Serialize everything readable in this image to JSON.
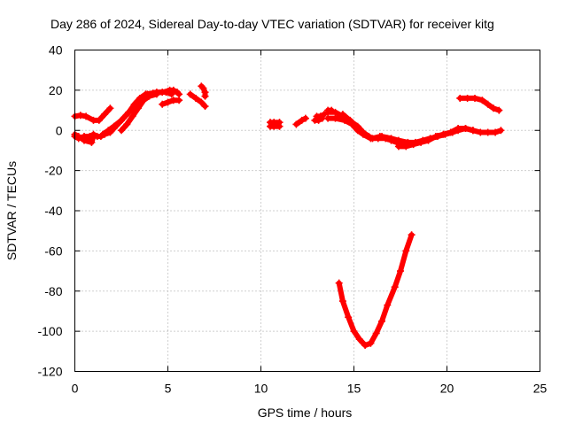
{
  "chart_data": {
    "type": "scatter",
    "title": "Day 286 of 2024, Sidereal Day-to-day VTEC variation (SDTVAR) for receiver kitg",
    "xlabel": "GPS time / hours",
    "ylabel": "SDTVAR / TECUs",
    "xlim": [
      0,
      25
    ],
    "ylim": [
      -120,
      40
    ],
    "xticks": [
      0,
      5,
      10,
      15,
      20,
      25
    ],
    "yticks": [
      -120,
      -100,
      -80,
      -60,
      -40,
      -20,
      0,
      20,
      40
    ],
    "grid": true,
    "marker": "plus",
    "color": "#ff0000",
    "series": [
      {
        "name": "arc1",
        "points": [
          [
            0.0,
            7
          ],
          [
            0.3,
            7.5
          ],
          [
            0.6,
            7
          ],
          [
            1.0,
            5
          ],
          [
            1.3,
            5
          ],
          [
            1.6,
            8
          ],
          [
            1.9,
            11
          ]
        ]
      },
      {
        "name": "arc2",
        "points": [
          [
            0.0,
            -2
          ],
          [
            0.2,
            -3
          ],
          [
            0.5,
            -5
          ],
          [
            0.9,
            -6
          ],
          [
            1.0,
            -3
          ]
        ]
      },
      {
        "name": "arc3",
        "points": [
          [
            0.0,
            -3
          ],
          [
            0.2,
            -4
          ],
          [
            0.5,
            -3
          ],
          [
            0.8,
            -3
          ],
          [
            1.0,
            -2
          ],
          [
            1.2,
            -3
          ],
          [
            1.4,
            -3
          ],
          [
            1.6,
            -2
          ],
          [
            1.9,
            -1
          ],
          [
            2.1,
            1
          ],
          [
            2.4,
            4
          ],
          [
            2.6,
            6
          ],
          [
            2.9,
            9
          ],
          [
            3.2,
            12
          ],
          [
            3.5,
            16
          ],
          [
            3.9,
            18
          ],
          [
            4.4,
            19
          ],
          [
            4.9,
            19
          ],
          [
            5.2,
            18
          ]
        ]
      },
      {
        "name": "arc4",
        "points": [
          [
            1.5,
            -2
          ],
          [
            1.8,
            0
          ],
          [
            2.1,
            2
          ],
          [
            2.5,
            5
          ],
          [
            2.9,
            9
          ],
          [
            3.2,
            13
          ],
          [
            3.5,
            16
          ],
          [
            3.8,
            18
          ],
          [
            4.2,
            18.5
          ],
          [
            4.7,
            19
          ],
          [
            5.0,
            19.5
          ]
        ]
      },
      {
        "name": "arc5",
        "points": [
          [
            2.5,
            0
          ],
          [
            2.8,
            3
          ],
          [
            3.1,
            7
          ],
          [
            3.4,
            11
          ],
          [
            3.7,
            15
          ],
          [
            4.0,
            17
          ],
          [
            4.4,
            18
          ]
        ]
      },
      {
        "name": "arc6",
        "points": [
          [
            4.7,
            13
          ],
          [
            5.0,
            14
          ],
          [
            5.3,
            15
          ],
          [
            5.6,
            15
          ]
        ]
      },
      {
        "name": "arc7",
        "points": [
          [
            5.1,
            20
          ],
          [
            5.3,
            20
          ],
          [
            5.5,
            19
          ],
          [
            5.6,
            18
          ]
        ]
      },
      {
        "name": "arc8",
        "points": [
          [
            6.2,
            18
          ],
          [
            6.5,
            16
          ],
          [
            6.8,
            14
          ],
          [
            7.0,
            12
          ]
        ]
      },
      {
        "name": "arc9",
        "points": [
          [
            6.8,
            22
          ],
          [
            6.9,
            21
          ],
          [
            7.0,
            19
          ],
          [
            7.0,
            17
          ]
        ]
      },
      {
        "name": "arc10",
        "points": [
          [
            10.5,
            4
          ],
          [
            10.7,
            4
          ],
          [
            11.0,
            4
          ]
        ]
      },
      {
        "name": "arc11",
        "points": [
          [
            10.5,
            2
          ],
          [
            10.7,
            2
          ],
          [
            11.0,
            2
          ]
        ]
      },
      {
        "name": "arc12",
        "points": [
          [
            11.9,
            3
          ],
          [
            12.2,
            5
          ],
          [
            12.4,
            6
          ]
        ]
      },
      {
        "name": "arc13",
        "points": [
          [
            12.9,
            5
          ],
          [
            13.1,
            5
          ],
          [
            13.3,
            6
          ]
        ]
      },
      {
        "name": "arc14",
        "points": [
          [
            13.0,
            7
          ],
          [
            13.2,
            7
          ],
          [
            13.4,
            8
          ]
        ]
      },
      {
        "name": "arc15",
        "points": [
          [
            13.6,
            10
          ],
          [
            13.8,
            10
          ]
        ]
      },
      {
        "name": "arc16",
        "points": [
          [
            13.6,
            6
          ],
          [
            14.0,
            6
          ],
          [
            14.5,
            5
          ],
          [
            14.9,
            3
          ],
          [
            15.2,
            0
          ],
          [
            15.5,
            -2
          ],
          [
            15.9,
            -4
          ],
          [
            16.3,
            -4
          ],
          [
            16.7,
            -4
          ],
          [
            17.0,
            -5
          ],
          [
            17.3,
            -6
          ],
          [
            17.6,
            -7
          ],
          [
            17.9,
            -7
          ]
        ]
      },
      {
        "name": "arc17",
        "points": [
          [
            13.6,
            9
          ],
          [
            14.0,
            9
          ],
          [
            14.4,
            7
          ],
          [
            14.8,
            5
          ],
          [
            15.1,
            2
          ],
          [
            15.3,
            0
          ],
          [
            15.6,
            -2
          ],
          [
            16.0,
            -4
          ],
          [
            16.4,
            -3
          ],
          [
            16.8,
            -4
          ]
        ]
      },
      {
        "name": "arc18",
        "points": [
          [
            14.4,
            8
          ],
          [
            14.9,
            4
          ],
          [
            15.2,
            2
          ],
          [
            15.5,
            -1
          ],
          [
            15.8,
            -3
          ]
        ]
      },
      {
        "name": "arc19",
        "points": [
          [
            16.5,
            -3
          ],
          [
            17.0,
            -4
          ],
          [
            17.4,
            -5
          ],
          [
            17.9,
            -6
          ],
          [
            18.3,
            -6
          ],
          [
            18.7,
            -5
          ],
          [
            19.1,
            -4
          ],
          [
            19.5,
            -3
          ],
          [
            19.9,
            -2
          ],
          [
            20.3,
            -1
          ],
          [
            20.6,
            0
          ],
          [
            21.0,
            1
          ],
          [
            21.4,
            0
          ],
          [
            21.8,
            -1
          ],
          [
            22.2,
            -1
          ],
          [
            22.6,
            -1
          ],
          [
            22.9,
            0
          ]
        ]
      },
      {
        "name": "arc20",
        "points": [
          [
            17.4,
            -8
          ],
          [
            17.8,
            -8
          ],
          [
            18.2,
            -7
          ],
          [
            18.6,
            -6
          ],
          [
            19.0,
            -5
          ],
          [
            19.4,
            -3
          ],
          [
            19.8,
            -2
          ],
          [
            20.2,
            -1
          ],
          [
            20.6,
            1
          ],
          [
            21.0,
            1
          ],
          [
            21.4,
            0
          ]
        ]
      },
      {
        "name": "arc21",
        "points": [
          [
            20.7,
            16
          ],
          [
            21.1,
            16
          ],
          [
            21.5,
            16
          ],
          [
            21.9,
            15
          ],
          [
            22.2,
            13
          ],
          [
            22.5,
            11
          ],
          [
            22.8,
            10
          ]
        ]
      },
      {
        "name": "arc22",
        "points": [
          [
            14.2,
            -76
          ],
          [
            14.4,
            -85
          ],
          [
            14.7,
            -93
          ],
          [
            15.0,
            -100
          ],
          [
            15.3,
            -104
          ],
          [
            15.6,
            -107
          ],
          [
            15.9,
            -106
          ],
          [
            16.2,
            -101
          ],
          [
            16.5,
            -95
          ],
          [
            16.8,
            -87
          ],
          [
            17.2,
            -78
          ],
          [
            17.5,
            -70
          ],
          [
            17.8,
            -60
          ],
          [
            18.1,
            -52
          ]
        ]
      }
    ]
  }
}
